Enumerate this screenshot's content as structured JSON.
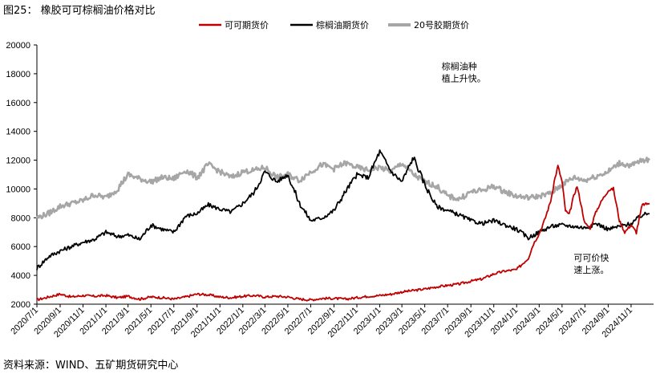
{
  "figure": {
    "title": "图25：  橡胶可可棕榈油价格对比",
    "source": "资料来源：WIND、五矿期货研究中心"
  },
  "chart_data": {
    "type": "line",
    "ylim": [
      2000,
      20000
    ],
    "yticks": [
      2000,
      4000,
      6000,
      8000,
      10000,
      12000,
      14000,
      16000,
      18000,
      20000
    ],
    "xlim": [
      "2020-07-01",
      "2024-12-31"
    ],
    "xticks": [
      "2020/7/1",
      "2020/9/1",
      "2020/11/1",
      "2021/1/1",
      "2021/3/1",
      "2021/5/1",
      "2021/7/1",
      "2021/9/1",
      "2021/11/1",
      "2022/1/1",
      "2022/3/1",
      "2022/5/1",
      "2022/7/1",
      "2022/9/1",
      "2022/11/1",
      "2023/1/1",
      "2023/3/1",
      "2023/5/1",
      "2023/7/1",
      "2023/9/1",
      "2023/11/1",
      "2024/1/1",
      "2024/3/1",
      "2024/5/1",
      "2024/7/1",
      "2024/9/1",
      "2024/11/1"
    ],
    "legend_position": "top",
    "grid": false,
    "series": [
      {
        "name": "可可期货价",
        "color": "#C00000",
        "points": [
          [
            "2020-07-01",
            2300
          ],
          [
            "2020-08-01",
            2500
          ],
          [
            "2020-09-01",
            2700
          ],
          [
            "2020-10-01",
            2500
          ],
          [
            "2020-11-01",
            2600
          ],
          [
            "2020-12-01",
            2550
          ],
          [
            "2021-01-01",
            2600
          ],
          [
            "2021-02-01",
            2450
          ],
          [
            "2021-03-01",
            2550
          ],
          [
            "2021-04-01",
            2350
          ],
          [
            "2021-05-01",
            2500
          ],
          [
            "2021-06-01",
            2450
          ],
          [
            "2021-07-01",
            2350
          ],
          [
            "2021-08-01",
            2500
          ],
          [
            "2021-09-01",
            2700
          ],
          [
            "2021-10-01",
            2650
          ],
          [
            "2021-11-01",
            2500
          ],
          [
            "2021-12-01",
            2450
          ],
          [
            "2022-01-01",
            2550
          ],
          [
            "2022-02-01",
            2600
          ],
          [
            "2022-03-01",
            2500
          ],
          [
            "2022-04-01",
            2550
          ],
          [
            "2022-05-01",
            2500
          ],
          [
            "2022-06-01",
            2350
          ],
          [
            "2022-07-01",
            2300
          ],
          [
            "2022-08-01",
            2400
          ],
          [
            "2022-09-01",
            2400
          ],
          [
            "2022-10-01",
            2350
          ],
          [
            "2022-11-01",
            2450
          ],
          [
            "2022-12-01",
            2550
          ],
          [
            "2023-01-01",
            2600
          ],
          [
            "2023-02-01",
            2700
          ],
          [
            "2023-03-01",
            2850
          ],
          [
            "2023-04-01",
            2950
          ],
          [
            "2023-05-01",
            3050
          ],
          [
            "2023-06-01",
            3200
          ],
          [
            "2023-07-01",
            3300
          ],
          [
            "2023-08-01",
            3400
          ],
          [
            "2023-09-01",
            3600
          ],
          [
            "2023-10-01",
            3750
          ],
          [
            "2023-11-01",
            4100
          ],
          [
            "2023-12-01",
            4300
          ],
          [
            "2024-01-01",
            4400
          ],
          [
            "2024-02-01",
            5200
          ],
          [
            "2024-02-15",
            6200
          ],
          [
            "2024-03-01",
            6900
          ],
          [
            "2024-03-15",
            7800
          ],
          [
            "2024-04-01",
            9200
          ],
          [
            "2024-04-10",
            10500
          ],
          [
            "2024-04-20",
            11600
          ],
          [
            "2024-05-01",
            10500
          ],
          [
            "2024-05-10",
            8500
          ],
          [
            "2024-05-20",
            8200
          ],
          [
            "2024-06-01",
            9500
          ],
          [
            "2024-06-10",
            10200
          ],
          [
            "2024-06-20",
            9000
          ],
          [
            "2024-07-01",
            7600
          ],
          [
            "2024-07-15",
            7300
          ],
          [
            "2024-08-01",
            8500
          ],
          [
            "2024-08-15",
            9200
          ],
          [
            "2024-09-01",
            9900
          ],
          [
            "2024-09-15",
            10000
          ],
          [
            "2024-10-01",
            7800
          ],
          [
            "2024-10-15",
            7000
          ],
          [
            "2024-11-01",
            7500
          ],
          [
            "2024-11-15",
            7000
          ],
          [
            "2024-12-01",
            8900
          ],
          [
            "2024-12-20",
            9000
          ]
        ]
      },
      {
        "name": "棕榈油期货价",
        "color": "#000000",
        "points": [
          [
            "2020-07-01",
            4500
          ],
          [
            "2020-08-01",
            5300
          ],
          [
            "2020-09-01",
            5700
          ],
          [
            "2020-10-01",
            6000
          ],
          [
            "2020-11-01",
            6300
          ],
          [
            "2020-12-01",
            6500
          ],
          [
            "2021-01-01",
            7000
          ],
          [
            "2021-02-01",
            6700
          ],
          [
            "2021-03-01",
            6800
          ],
          [
            "2021-04-01",
            6500
          ],
          [
            "2021-05-01",
            7500
          ],
          [
            "2021-06-01",
            7200
          ],
          [
            "2021-07-01",
            7000
          ],
          [
            "2021-08-01",
            8100
          ],
          [
            "2021-09-01",
            8300
          ],
          [
            "2021-10-01",
            8900
          ],
          [
            "2021-11-01",
            8600
          ],
          [
            "2021-12-01",
            8400
          ],
          [
            "2022-01-01",
            9000
          ],
          [
            "2022-02-01",
            9800
          ],
          [
            "2022-03-01",
            11200
          ],
          [
            "2022-04-01",
            10500
          ],
          [
            "2022-05-01",
            11000
          ],
          [
            "2022-06-01",
            9000
          ],
          [
            "2022-07-01",
            7800
          ],
          [
            "2022-08-01",
            8000
          ],
          [
            "2022-09-01",
            8500
          ],
          [
            "2022-10-01",
            9800
          ],
          [
            "2022-11-01",
            11000
          ],
          [
            "2022-12-01",
            10800
          ],
          [
            "2023-01-01",
            12600
          ],
          [
            "2023-02-01",
            11200
          ],
          [
            "2023-03-01",
            10500
          ],
          [
            "2023-04-01",
            12200
          ],
          [
            "2023-05-01",
            10300
          ],
          [
            "2023-06-01",
            8800
          ],
          [
            "2023-07-01",
            8500
          ],
          [
            "2023-08-01",
            8200
          ],
          [
            "2023-09-01",
            7800
          ],
          [
            "2023-10-01",
            7600
          ],
          [
            "2023-11-01",
            7800
          ],
          [
            "2023-12-01",
            7500
          ],
          [
            "2024-01-01",
            7200
          ],
          [
            "2024-02-01",
            6600
          ],
          [
            "2024-03-01",
            7000
          ],
          [
            "2024-04-01",
            7400
          ],
          [
            "2024-05-01",
            7500
          ],
          [
            "2024-06-01",
            7400
          ],
          [
            "2024-07-01",
            7300
          ],
          [
            "2024-08-01",
            7600
          ],
          [
            "2024-09-01",
            7200
          ],
          [
            "2024-10-01",
            7400
          ],
          [
            "2024-11-01",
            7600
          ],
          [
            "2024-12-01",
            8200
          ],
          [
            "2024-12-20",
            8300
          ]
        ]
      },
      {
        "name": "20号胶期货价",
        "color": "#A6A6A6",
        "points": [
          [
            "2020-07-01",
            8000
          ],
          [
            "2020-08-01",
            8300
          ],
          [
            "2020-09-01",
            8800
          ],
          [
            "2020-10-01",
            9000
          ],
          [
            "2020-11-01",
            9200
          ],
          [
            "2020-12-01",
            9600
          ],
          [
            "2021-01-01",
            9400
          ],
          [
            "2021-02-01",
            10000
          ],
          [
            "2021-03-01",
            11000
          ],
          [
            "2021-04-01",
            10700
          ],
          [
            "2021-05-01",
            10500
          ],
          [
            "2021-06-01",
            10800
          ],
          [
            "2021-07-01",
            10700
          ],
          [
            "2021-08-01",
            11300
          ],
          [
            "2021-09-01",
            10800
          ],
          [
            "2021-10-01",
            11700
          ],
          [
            "2021-11-01",
            11200
          ],
          [
            "2021-12-01",
            10800
          ],
          [
            "2022-01-01",
            11200
          ],
          [
            "2022-02-01",
            11300
          ],
          [
            "2022-03-01",
            11500
          ],
          [
            "2022-04-01",
            10800
          ],
          [
            "2022-05-01",
            11000
          ],
          [
            "2022-06-01",
            10600
          ],
          [
            "2022-07-01",
            11200
          ],
          [
            "2022-08-01",
            11700
          ],
          [
            "2022-09-01",
            11400
          ],
          [
            "2022-10-01",
            11800
          ],
          [
            "2022-11-01",
            11500
          ],
          [
            "2022-12-01",
            11300
          ],
          [
            "2023-01-01",
            11500
          ],
          [
            "2023-02-01",
            11200
          ],
          [
            "2023-03-01",
            11800
          ],
          [
            "2023-04-01",
            11000
          ],
          [
            "2023-05-01",
            10500
          ],
          [
            "2023-06-01",
            10200
          ],
          [
            "2023-07-01",
            9500
          ],
          [
            "2023-08-01",
            9300
          ],
          [
            "2023-09-01",
            9800
          ],
          [
            "2023-10-01",
            9900
          ],
          [
            "2023-11-01",
            10200
          ],
          [
            "2023-12-01",
            9800
          ],
          [
            "2024-01-01",
            9500
          ],
          [
            "2024-02-01",
            9400
          ],
          [
            "2024-03-01",
            9500
          ],
          [
            "2024-04-01",
            9700
          ],
          [
            "2024-05-01",
            10300
          ],
          [
            "2024-06-01",
            10800
          ],
          [
            "2024-07-01",
            10600
          ],
          [
            "2024-08-01",
            10900
          ],
          [
            "2024-09-01",
            11200
          ],
          [
            "2024-10-01",
            11800
          ],
          [
            "2024-11-01",
            11600
          ],
          [
            "2024-12-01",
            12000
          ],
          [
            "2024-12-20",
            12000
          ]
        ]
      }
    ],
    "annotations": [
      {
        "lines": [
          "棕榈油种",
          "植上升快。"
        ],
        "anchor_date": "2023-06-15",
        "anchor_value": 18300
      },
      {
        "lines": [
          "可可价快",
          "速上涨。"
        ],
        "anchor_date": "2024-06-01",
        "anchor_value": 5000
      }
    ]
  }
}
